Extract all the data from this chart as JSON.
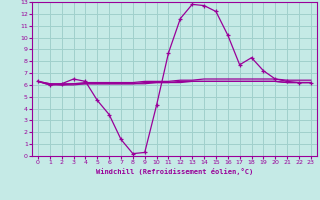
{
  "xlabel": "Windchill (Refroidissement éolien,°C)",
  "xlim": [
    -0.5,
    23.5
  ],
  "ylim": [
    0,
    13
  ],
  "xticks": [
    0,
    1,
    2,
    3,
    4,
    5,
    6,
    7,
    8,
    9,
    10,
    11,
    12,
    13,
    14,
    15,
    16,
    17,
    18,
    19,
    20,
    21,
    22,
    23
  ],
  "yticks": [
    0,
    1,
    2,
    3,
    4,
    5,
    6,
    7,
    8,
    9,
    10,
    11,
    12,
    13
  ],
  "bg_color": "#c5eae6",
  "line_color": "#990099",
  "grid_color": "#a0d0cc",
  "curve1_x": [
    0,
    1,
    2,
    3,
    4,
    5,
    6,
    7,
    8,
    9,
    10,
    11,
    12,
    13,
    14,
    15,
    16,
    17,
    18,
    19,
    20,
    21,
    22,
    23
  ],
  "curve1_y": [
    6.3,
    6.0,
    6.1,
    6.5,
    6.3,
    4.7,
    3.5,
    1.4,
    0.2,
    0.3,
    4.3,
    8.7,
    11.6,
    12.8,
    12.7,
    12.2,
    10.2,
    7.7,
    8.3,
    7.2,
    6.5,
    6.3,
    6.2,
    6.2
  ],
  "curve2_x": [
    0,
    1,
    2,
    3,
    4,
    5,
    6,
    7,
    8,
    9,
    10,
    11,
    12,
    13,
    14,
    15,
    16,
    17,
    18,
    19,
    20,
    21,
    22,
    23
  ],
  "curve2_y": [
    6.3,
    6.1,
    6.1,
    6.1,
    6.2,
    6.2,
    6.2,
    6.2,
    6.2,
    6.3,
    6.3,
    6.3,
    6.4,
    6.4,
    6.5,
    6.5,
    6.5,
    6.5,
    6.5,
    6.5,
    6.5,
    6.4,
    6.4,
    6.4
  ],
  "curve3_x": [
    0,
    1,
    2,
    3,
    4,
    5,
    6,
    7,
    8,
    9,
    10,
    11,
    12,
    13,
    14,
    15,
    16,
    17,
    18,
    19,
    20,
    21,
    22,
    23
  ],
  "curve3_y": [
    6.3,
    6.1,
    6.0,
    6.1,
    6.1,
    6.1,
    6.1,
    6.1,
    6.1,
    6.2,
    6.2,
    6.2,
    6.3,
    6.3,
    6.3,
    6.3,
    6.3,
    6.3,
    6.3,
    6.3,
    6.3,
    6.2,
    6.2,
    6.2
  ],
  "curve4_x": [
    0,
    1,
    2,
    3,
    4,
    5,
    6,
    7,
    8,
    9,
    10,
    11,
    12,
    13,
    14,
    15,
    16,
    17,
    18,
    19,
    20,
    21,
    22,
    23
  ],
  "curve4_y": [
    6.3,
    6.0,
    6.0,
    6.0,
    6.1,
    6.1,
    6.1,
    6.1,
    6.1,
    6.1,
    6.2,
    6.2,
    6.2,
    6.3,
    6.3,
    6.3,
    6.3,
    6.3,
    6.3,
    6.3,
    6.3,
    6.2,
    6.2,
    6.2
  ]
}
